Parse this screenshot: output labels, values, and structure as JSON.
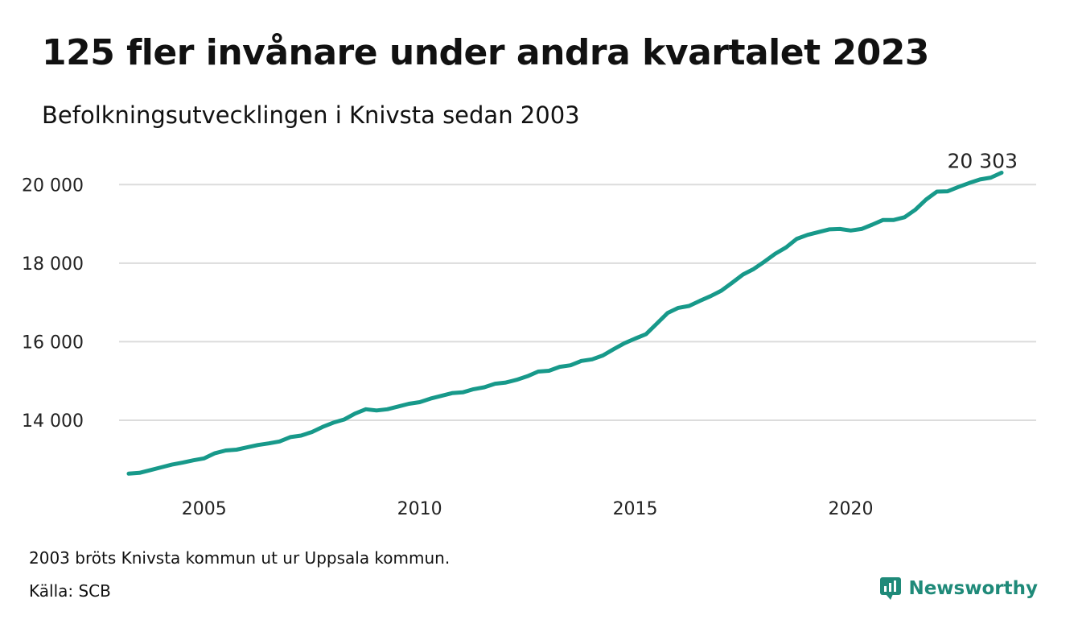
{
  "colors": {
    "line": "#17998a",
    "grid": "#dcdcdc",
    "brand": "#1f8a79"
  },
  "header": {
    "title": "125 fler invånare under andra kvartalet 2023",
    "subtitle": "Befolkningsutvecklingen i Knivsta sedan 2003"
  },
  "footer": {
    "note": "2003 bröts Knivsta kommun ut ur Uppsala kommun.",
    "source": "Källa: SCB",
    "brand": "Newsworthy",
    "brand_icon": "newsworthy-logo-icon"
  },
  "chart_data": {
    "type": "line",
    "title": "",
    "xlabel": "",
    "ylabel": "",
    "x_ticks": [
      2005,
      2010,
      2015,
      2020
    ],
    "y_ticks": [
      14000,
      16000,
      18000,
      20000
    ],
    "y_tick_labels": [
      "14 000",
      "16 000",
      "18 000",
      "20 000"
    ],
    "xlim": [
      2003.25,
      2023.5
    ],
    "ylim": [
      12400,
      20600
    ],
    "grid": true,
    "end_label": "20 303",
    "series": [
      {
        "x": [
          2003.25,
          2003.5,
          2003.75,
          2004,
          2004.25,
          2004.5,
          2004.75,
          2005,
          2005.25,
          2005.5,
          2005.75,
          2006,
          2006.25,
          2006.5,
          2006.75,
          2007,
          2007.25,
          2007.5,
          2007.75,
          2008,
          2008.25,
          2008.5,
          2008.75,
          2009,
          2009.25,
          2009.5,
          2009.75,
          2010,
          2010.25,
          2010.5,
          2010.75,
          2011,
          2011.25,
          2011.5,
          2011.75,
          2012,
          2012.25,
          2012.5,
          2012.75,
          2013,
          2013.25,
          2013.5,
          2013.75,
          2014,
          2014.25,
          2014.5,
          2014.75,
          2015,
          2015.25,
          2015.5,
          2015.75,
          2016,
          2016.25,
          2016.5,
          2016.75,
          2017,
          2017.25,
          2017.5,
          2017.75,
          2018,
          2018.25,
          2018.5,
          2018.75,
          2019,
          2019.25,
          2019.5,
          2019.75,
          2020,
          2020.25,
          2020.5,
          2020.75,
          2021,
          2021.25,
          2021.5,
          2021.75,
          2022,
          2022.25,
          2022.5,
          2022.75,
          2023,
          2023.25,
          2023.5
        ],
        "values": [
          12640,
          12660,
          12730,
          12800,
          12870,
          12920,
          12980,
          13030,
          13160,
          13230,
          13250,
          13310,
          13370,
          13410,
          13460,
          13570,
          13610,
          13700,
          13830,
          13940,
          14020,
          14170,
          14280,
          14250,
          14280,
          14350,
          14420,
          14460,
          14550,
          14620,
          14690,
          14710,
          14790,
          14840,
          14930,
          14960,
          15030,
          15120,
          15240,
          15260,
          15360,
          15400,
          15510,
          15550,
          15650,
          15810,
          15960,
          16080,
          16190,
          16460,
          16730,
          16860,
          16910,
          17040,
          17160,
          17300,
          17500,
          17710,
          17850,
          18040,
          18240,
          18400,
          18620,
          18720,
          18790,
          18860,
          18870,
          18830,
          18870,
          18980,
          19100,
          19100,
          19170,
          19360,
          19620,
          19820,
          19830,
          19940,
          20040,
          20130,
          20178,
          20303
        ]
      }
    ]
  }
}
